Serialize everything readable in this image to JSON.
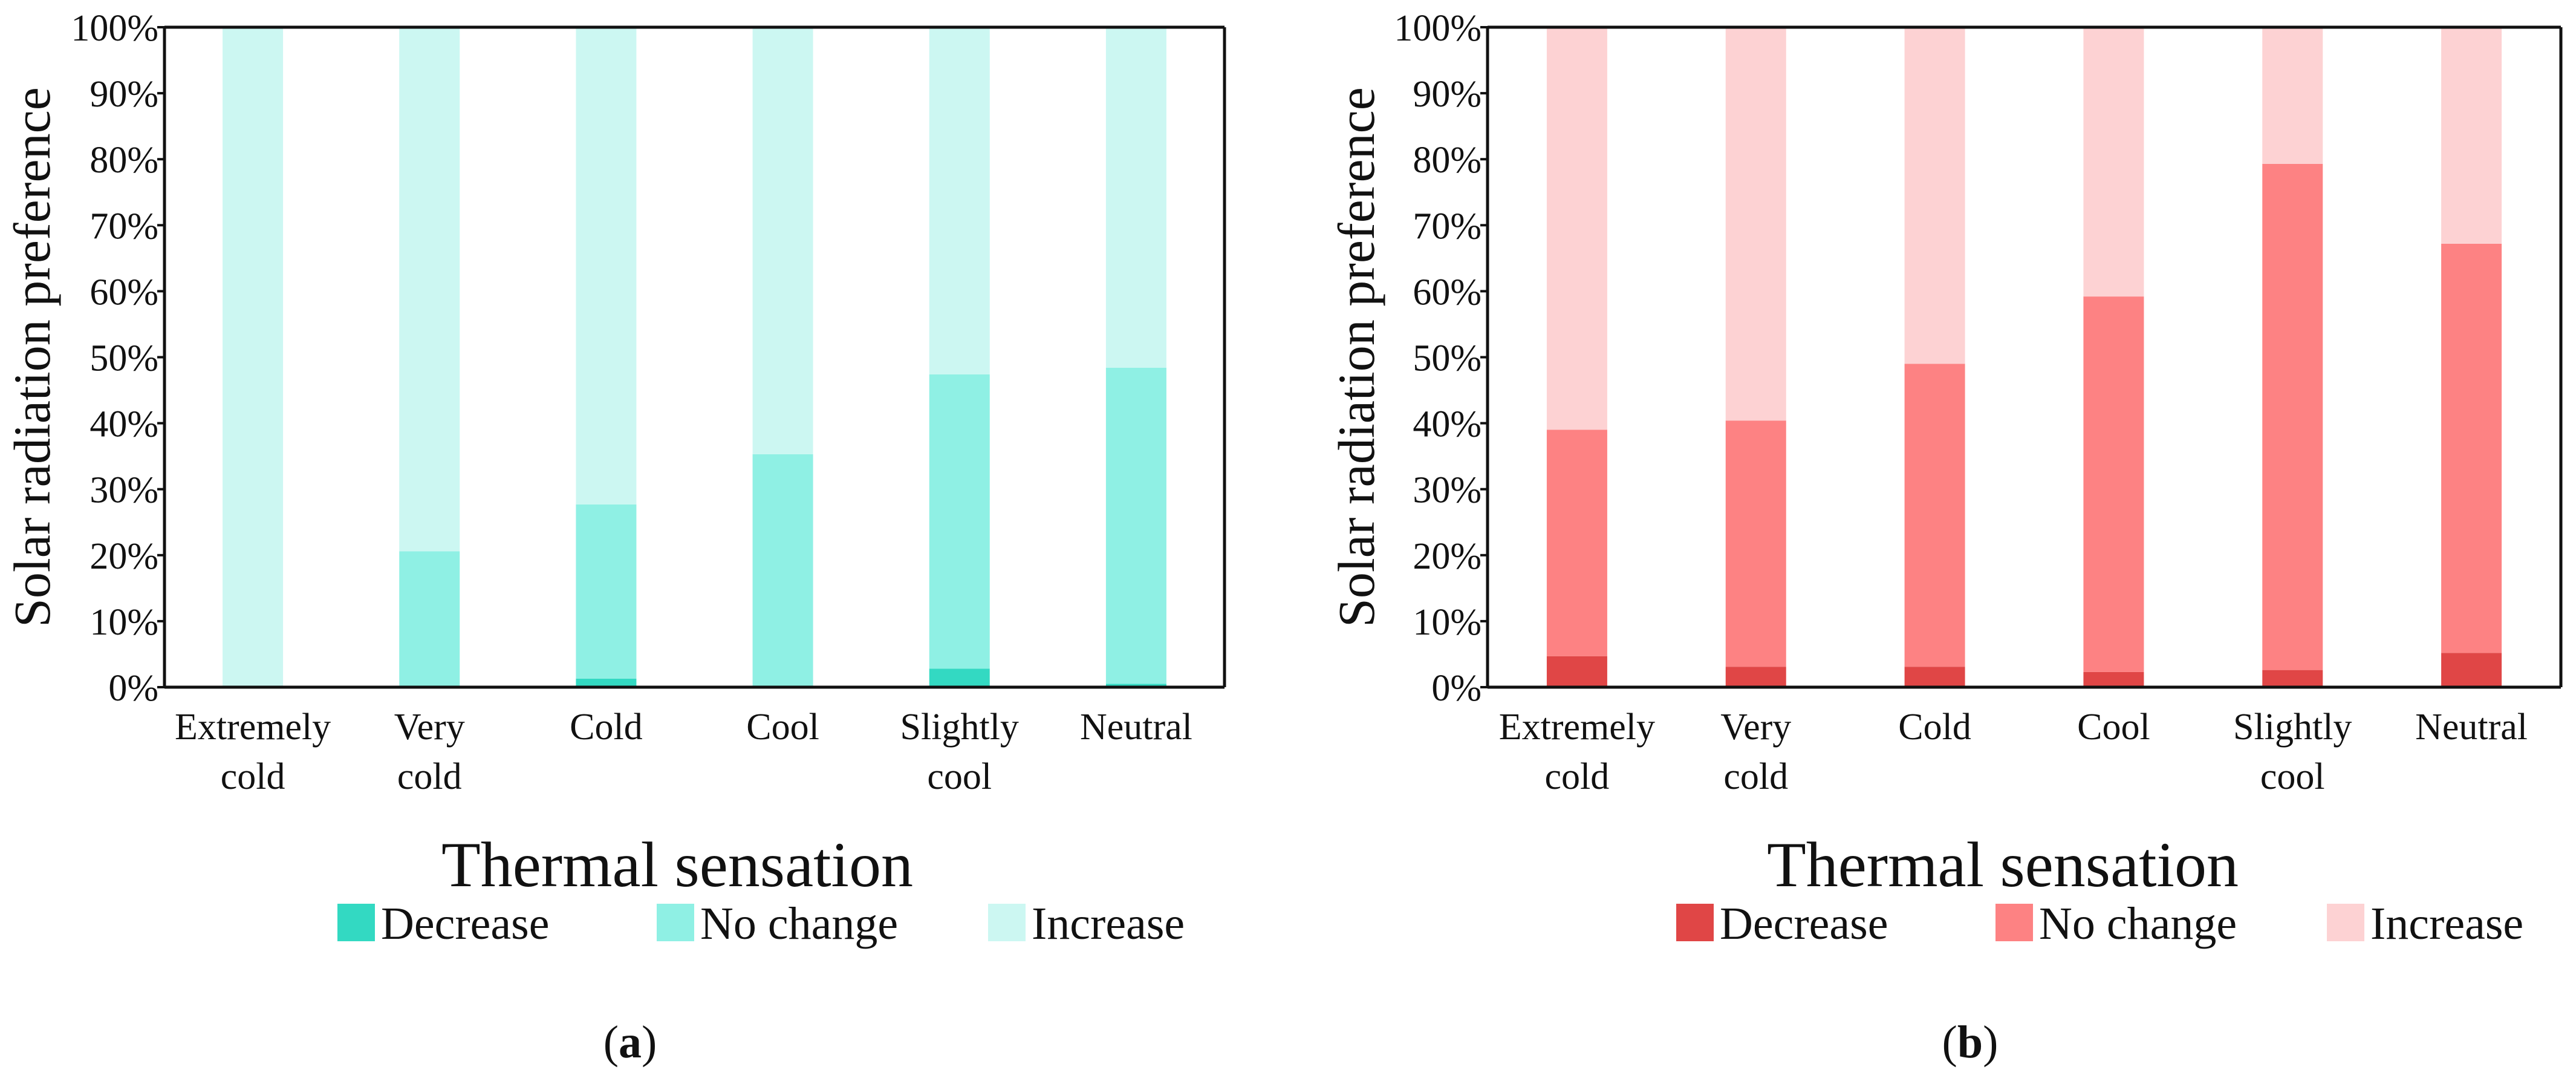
{
  "chart_data": [
    {
      "type": "bar",
      "stacked": true,
      "panel_label": "a",
      "title": "",
      "xlabel": "Thermal sensation",
      "ylabel": "Solar radiation preference",
      "ylim": [
        0,
        100
      ],
      "y_ticks": [
        "0%",
        "10%",
        "20%",
        "30%",
        "40%",
        "50%",
        "60%",
        "70%",
        "80%",
        "90%",
        "100%"
      ],
      "categories": [
        [
          "Extremely",
          "cold"
        ],
        [
          "Very",
          "cold"
        ],
        [
          "Cold"
        ],
        [
          "Cool"
        ],
        [
          "Slightly",
          "cool"
        ],
        [
          "Neutral"
        ]
      ],
      "series": [
        {
          "name": "Decrease",
          "color": "#33d9c2",
          "values": [
            0,
            0,
            1.3,
            0,
            2.8,
            0.5
          ]
        },
        {
          "name": "No change",
          "color": "#8ff0e4",
          "values": [
            0,
            20.6,
            26.4,
            35.3,
            44.6,
            47.9
          ]
        },
        {
          "name": "Increase",
          "color": "#ccf7f2",
          "values": [
            100,
            79.4,
            72.3,
            64.7,
            52.6,
            51.6
          ]
        }
      ],
      "legend": "bottom-center"
    },
    {
      "type": "bar",
      "stacked": true,
      "panel_label": "b",
      "title": "",
      "xlabel": "Thermal sensation",
      "ylabel": "Solar radiation preference",
      "ylim": [
        0,
        100
      ],
      "y_ticks": [
        "0%",
        "10%",
        "20%",
        "30%",
        "40%",
        "50%",
        "60%",
        "70%",
        "80%",
        "90%",
        "100%"
      ],
      "categories": [
        [
          "Extremely",
          "cold"
        ],
        [
          "Very",
          "cold"
        ],
        [
          "Cold"
        ],
        [
          "Cool"
        ],
        [
          "Slightly",
          "cool"
        ],
        [
          "Neutral"
        ]
      ],
      "series": [
        {
          "name": "Decrease",
          "color": "#e04646",
          "values": [
            4.7,
            3.1,
            3.1,
            2.3,
            2.6,
            5.2
          ]
        },
        {
          "name": "No change",
          "color": "#fd8283",
          "values": [
            34.3,
            37.3,
            45.9,
            56.9,
            76.7,
            62.0
          ]
        },
        {
          "name": "Increase",
          "color": "#fdd2d3",
          "values": [
            61.0,
            59.6,
            51.0,
            40.8,
            20.7,
            32.8
          ]
        }
      ],
      "legend": "bottom-center"
    }
  ]
}
